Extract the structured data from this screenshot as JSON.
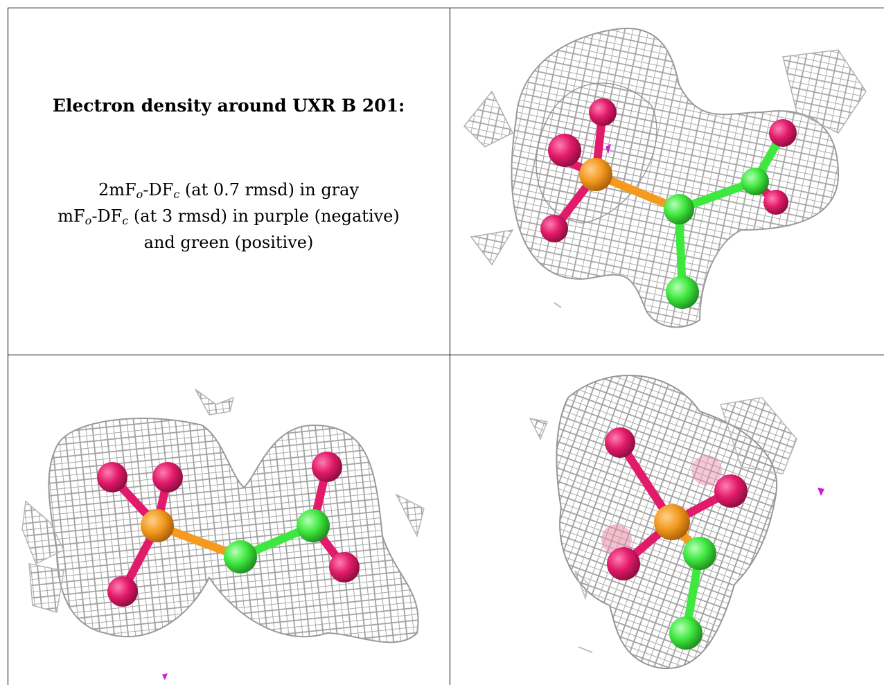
{
  "caption": {
    "title": "Electron density around UXR B 201:",
    "line1": {
      "main": "2mF",
      "sub1": "o",
      "mid": "-DF",
      "sub2": "c",
      "rest": " (at 0.7 rmsd) in gray"
    },
    "line2": {
      "main": "mF",
      "sub1": "o",
      "mid": "-DF",
      "sub2": "c",
      "rest": " (at 3 rmsd) in purple (negative)"
    },
    "line3": "and green (positive)"
  },
  "colors": {
    "phosphorus": "#f39a1f",
    "oxygen": "#e21a6b",
    "carbon": "#3fe83f",
    "density_mesh": "#9a9a9a",
    "negative_blob": "#d21ad8"
  }
}
